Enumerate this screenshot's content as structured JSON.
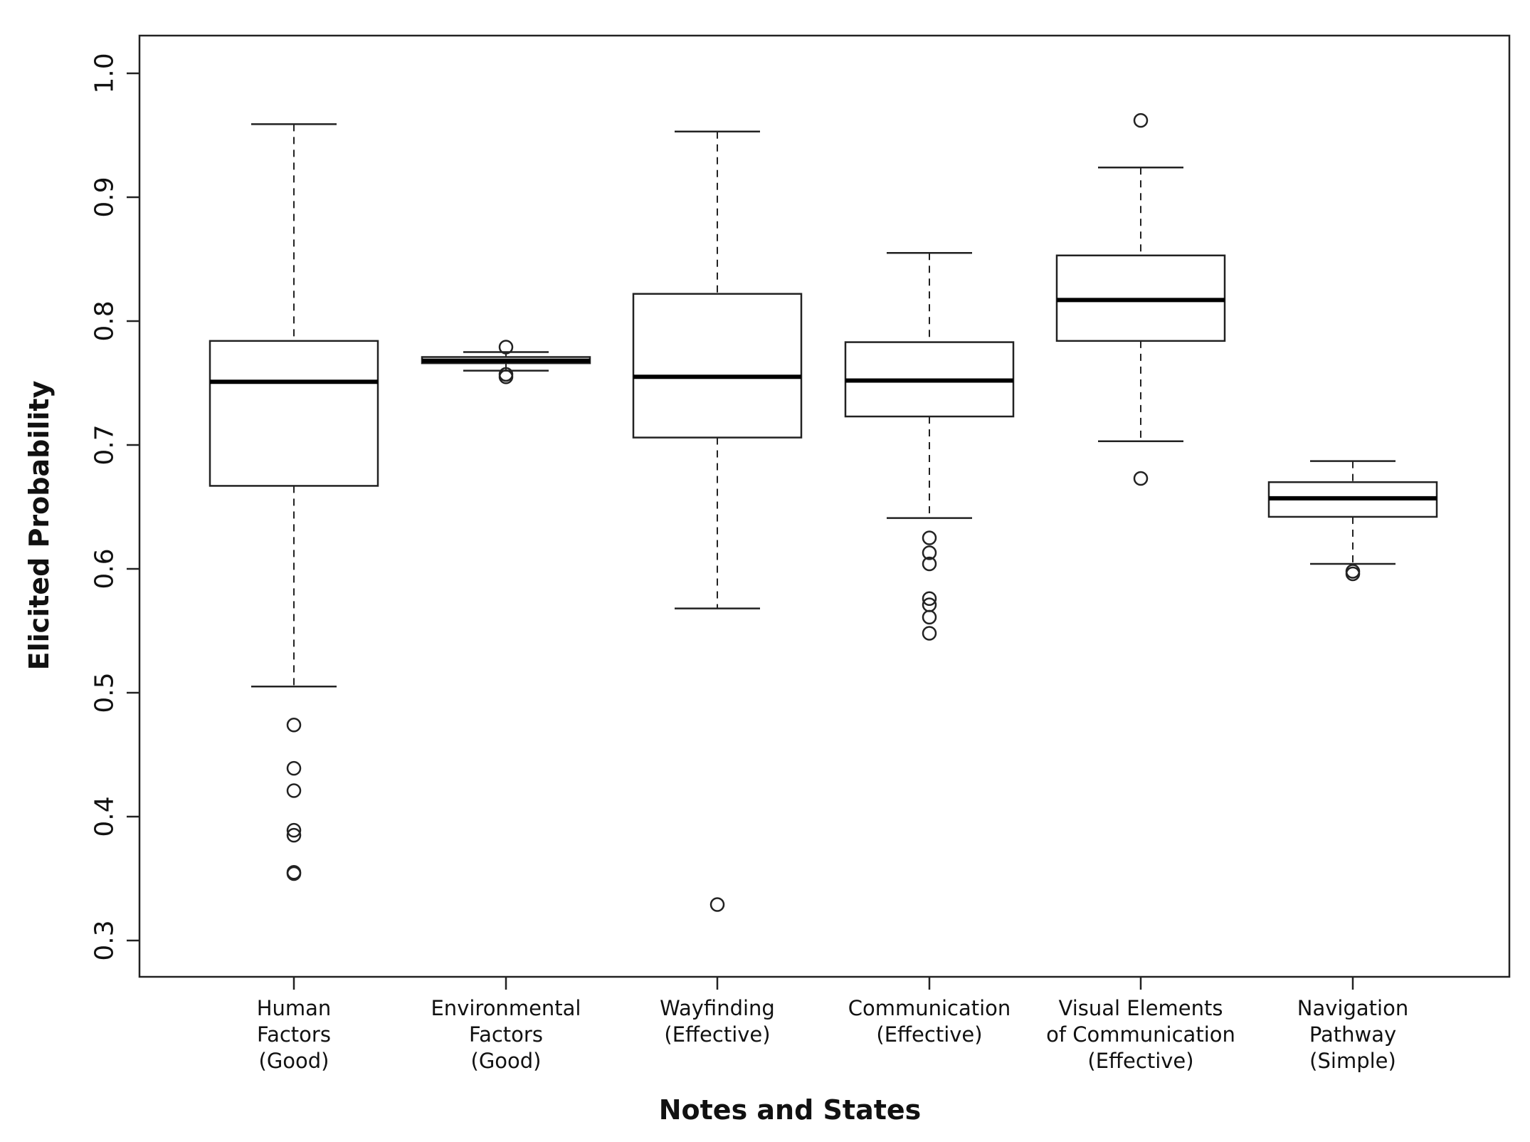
{
  "chart_data": {
    "type": "boxplot",
    "title": "",
    "xlabel": "Notes and States",
    "ylabel": "Elicited Probability",
    "ylim": [
      0.275,
      1.03
    ],
    "yticks": [
      "0.3",
      "0.4",
      "0.5",
      "0.6",
      "0.7",
      "0.8",
      "0.9",
      "1.0"
    ],
    "grid": false,
    "legend": "none",
    "categories": [
      {
        "label_lines": [
          "Human",
          "Factors",
          "(Good)"
        ],
        "whisker_low": 0.505,
        "q1": 0.667,
        "median": 0.751,
        "q3": 0.784,
        "whisker_high": 0.959,
        "outliers": [
          0.474,
          0.439,
          0.421,
          0.389,
          0.385,
          0.355,
          0.354
        ]
      },
      {
        "label_lines": [
          "Environmental",
          "Factors",
          "(Good)"
        ],
        "whisker_low": 0.76,
        "q1": 0.766,
        "median": 0.768,
        "q3": 0.771,
        "whisker_high": 0.775,
        "outliers": [
          0.779,
          0.757,
          0.755
        ]
      },
      {
        "label_lines": [
          "Wayfinding",
          "(Effective)"
        ],
        "whisker_low": 0.568,
        "q1": 0.706,
        "median": 0.755,
        "q3": 0.822,
        "whisker_high": 0.953,
        "outliers": [
          0.329
        ]
      },
      {
        "label_lines": [
          "Communication",
          "(Effective)"
        ],
        "whisker_low": 0.641,
        "q1": 0.723,
        "median": 0.752,
        "q3": 0.783,
        "whisker_high": 0.855,
        "outliers": [
          0.625,
          0.613,
          0.604,
          0.576,
          0.571,
          0.561,
          0.548
        ]
      },
      {
        "label_lines": [
          "Visual Elements",
          "of Communication",
          "(Effective)"
        ],
        "whisker_low": 0.703,
        "q1": 0.784,
        "median": 0.817,
        "q3": 0.853,
        "whisker_high": 0.924,
        "outliers": [
          0.962,
          0.673
        ]
      },
      {
        "label_lines": [
          "Navigation",
          "Pathway",
          "(Simple)"
        ],
        "whisker_low": 0.604,
        "q1": 0.642,
        "median": 0.657,
        "q3": 0.67,
        "whisker_high": 0.687,
        "outliers": [
          0.598,
          0.596
        ]
      }
    ]
  }
}
